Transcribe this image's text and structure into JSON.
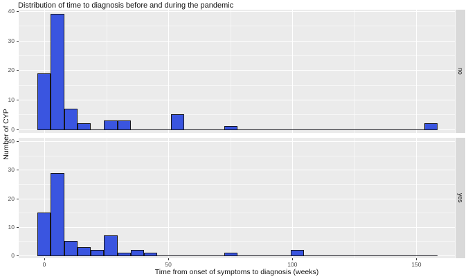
{
  "chart_data": {
    "type": "histogram",
    "title": "Distribution of time to diagnosis before and during the pandemic",
    "xlabel": "Time from onset of symptoms to diagnosis (weeks)",
    "ylabel": "Number of CYP",
    "facet_variable_values": [
      "no",
      "yes"
    ],
    "x_ticks": [
      0,
      50,
      100,
      150
    ],
    "y_ticks": [
      0,
      10,
      20,
      30,
      40
    ],
    "x_minor_gridlines": [
      25,
      75,
      125
    ],
    "y_minor_gridlines": [
      5,
      15,
      25,
      35
    ],
    "xlim": [
      -10.3,
      165.5
    ],
    "ylim": [
      0,
      40
    ],
    "bin_width_weeks": 5.38,
    "zero_line_weeks": [
      -2.8,
      158.6
    ],
    "grid": "on",
    "legend_position": "none",
    "series": [
      {
        "facet": "no",
        "total": 81,
        "bins": [
          {
            "start": -2.8,
            "count": 19
          },
          {
            "start": 2.58,
            "count": 39
          },
          {
            "start": 7.96,
            "count": 7
          },
          {
            "start": 13.34,
            "count": 2
          },
          {
            "start": 24.1,
            "count": 3
          },
          {
            "start": 29.48,
            "count": 3
          },
          {
            "start": 51.0,
            "count": 5
          },
          {
            "start": 72.52,
            "count": 1
          },
          {
            "start": 153.22,
            "count": 2
          }
        ]
      },
      {
        "facet": "yes",
        "total": 68,
        "bins": [
          {
            "start": -2.8,
            "count": 15
          },
          {
            "start": 2.58,
            "count": 29
          },
          {
            "start": 7.96,
            "count": 5
          },
          {
            "start": 13.34,
            "count": 3
          },
          {
            "start": 18.72,
            "count": 2
          },
          {
            "start": 24.1,
            "count": 7
          },
          {
            "start": 29.48,
            "count": 1
          },
          {
            "start": 34.86,
            "count": 2
          },
          {
            "start": 40.24,
            "count": 1
          },
          {
            "start": 72.52,
            "count": 1
          },
          {
            "start": 99.42,
            "count": 2
          }
        ]
      }
    ],
    "colors": {
      "bar_fill": "#3A55E0",
      "bar_stroke": "#16161D",
      "panel_bg": "#EBEBEB",
      "strip_bg": "#D9D9D9",
      "gridline": "#FFFFFF",
      "tick_mark": "#333333",
      "tick_text": "#4D4D4D",
      "title_text": "#111111",
      "background": "#FFFFFF"
    }
  }
}
